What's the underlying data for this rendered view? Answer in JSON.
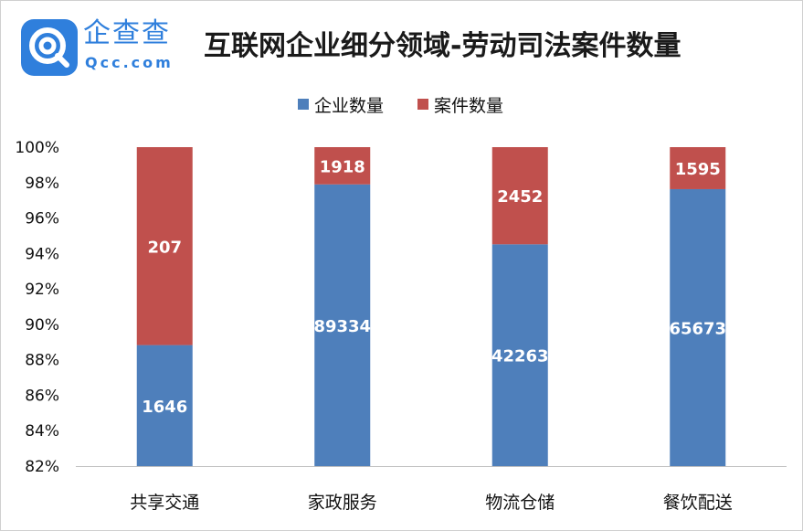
{
  "brand": {
    "name_cn": "企查查",
    "domain": "Qcc.com"
  },
  "title": "互联网企业细分领域-劳动司法案件数量",
  "colors": {
    "series_0": "#4e7fbb",
    "series_1": "#c0504d",
    "brand": "#2f7fdc"
  },
  "chart_data": {
    "type": "bar",
    "stacked": "percent",
    "title": "互联网企业细分领域-劳动司法案件数量",
    "categories": [
      "共享交通",
      "家政服务",
      "物流仓储",
      "餐饮配送"
    ],
    "series": [
      {
        "name": "企业数量",
        "values": [
          1646,
          89334,
          42263,
          65673
        ]
      },
      {
        "name": "案件数量",
        "values": [
          207,
          1918,
          2452,
          1595
        ]
      }
    ],
    "ylim": [
      82,
      100
    ],
    "yticks": [
      "82%",
      "84%",
      "86%",
      "88%",
      "90%",
      "92%",
      "94%",
      "96%",
      "98%",
      "100%"
    ],
    "legend_position": "top-center",
    "grid": false
  }
}
